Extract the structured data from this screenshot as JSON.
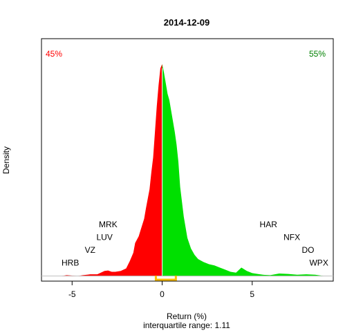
{
  "chart_data": {
    "type": "area",
    "title": "2014-12-09",
    "xlabel": "Return (%)",
    "subtitle": "interquartile range: 1.11",
    "ylabel": "Density",
    "xlim": [
      -6.7,
      9.5
    ],
    "ylim": [
      -0.012,
      0.56
    ],
    "x_ticks": [
      -5,
      0,
      5
    ],
    "x_tick_labels": [
      "-5",
      "0",
      "5"
    ],
    "split_at": 0,
    "negative_share": "45%",
    "positive_share": "55%",
    "colors": {
      "negative": "#ff0000",
      "positive": "#00e000",
      "negative_label": "#ff0000",
      "positive_label": "#008000",
      "iqr": "#ffc000",
      "baseline": "#bebebe"
    },
    "iqr": [
      -0.35,
      0.76
    ],
    "density": {
      "x": [
        -5.6,
        -5.3,
        -5.0,
        -4.7,
        -4.4,
        -4.0,
        -3.6,
        -3.2,
        -3.0,
        -2.8,
        -2.6,
        -2.3,
        -2.0,
        -1.8,
        -1.6,
        -1.5,
        -1.3,
        -1.2,
        -1.0,
        -0.9,
        -0.7,
        -0.6,
        -0.5,
        -0.4,
        -0.3,
        -0.2,
        -0.1,
        0.0,
        0.1,
        0.2,
        0.3,
        0.4,
        0.5,
        0.6,
        0.7,
        0.8,
        0.9,
        1.0,
        1.2,
        1.4,
        1.6,
        1.8,
        2.0,
        2.3,
        2.6,
        2.9,
        3.2,
        3.5,
        3.8,
        4.1,
        4.4,
        4.7,
        5.0,
        5.3,
        5.6,
        6.0,
        6.5,
        7.0,
        7.5,
        8.0,
        8.5,
        9.0
      ],
      "y": [
        0.0,
        0.002,
        0.001,
        0.0,
        0.002,
        0.004,
        0.004,
        0.012,
        0.013,
        0.01,
        0.01,
        0.012,
        0.018,
        0.035,
        0.055,
        0.078,
        0.094,
        0.108,
        0.135,
        0.16,
        0.205,
        0.245,
        0.28,
        0.34,
        0.4,
        0.45,
        0.49,
        0.5,
        0.48,
        0.455,
        0.43,
        0.415,
        0.39,
        0.365,
        0.34,
        0.31,
        0.27,
        0.21,
        0.14,
        0.09,
        0.065,
        0.05,
        0.04,
        0.033,
        0.028,
        0.025,
        0.02,
        0.015,
        0.01,
        0.008,
        0.02,
        0.012,
        0.007,
        0.005,
        0.003,
        0.002,
        0.006,
        0.005,
        0.003,
        0.004,
        0.003,
        0.0
      ]
    },
    "annotations": [
      {
        "text": "HRB",
        "x": -5.1,
        "y": 0.025
      },
      {
        "text": "VZ",
        "x": -4.0,
        "y": 0.055
      },
      {
        "text": "LUV",
        "x": -3.2,
        "y": 0.085
      },
      {
        "text": "MRK",
        "x": -3.0,
        "y": 0.115
      },
      {
        "text": "HAR",
        "x": 5.9,
        "y": 0.115
      },
      {
        "text": "NFX",
        "x": 7.2,
        "y": 0.085
      },
      {
        "text": "DO",
        "x": 8.1,
        "y": 0.055
      },
      {
        "text": "WPX",
        "x": 8.7,
        "y": 0.025
      }
    ]
  }
}
